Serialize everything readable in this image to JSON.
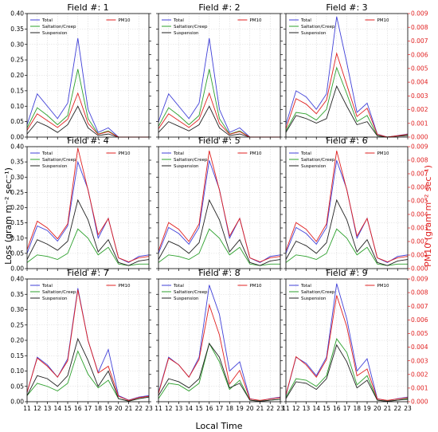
{
  "figure": {
    "ylabel_left": "Loss (gram m⁻² sec⁻¹)",
    "ylabel_right": "PM10 (gram m⁻² sec⁻¹)",
    "xlabel": "Local Time",
    "colors": {
      "Total": "#4040d8",
      "Saltation/Creep": "#2ca02c",
      "Suspension": "#222222",
      "PM10": "#e02020",
      "right_axis": "#e02020",
      "grid": "#d8d8d8"
    }
  },
  "chart_data": {
    "type": "line",
    "grid": true,
    "x": [
      11,
      12,
      13,
      14,
      15,
      16,
      17,
      18,
      19,
      20,
      21,
      22,
      23
    ],
    "xticks": [
      "11",
      "12",
      "13",
      "14",
      "15",
      "16",
      "17",
      "18",
      "19",
      "20",
      "21",
      "22",
      "23"
    ],
    "ylim_left": [
      0,
      0.4
    ],
    "yticks_left": [
      "0.00",
      "0.05",
      "0.10",
      "0.15",
      "0.20",
      "0.25",
      "0.30",
      "0.35",
      "0.40"
    ],
    "ylim_right": [
      0,
      0.009
    ],
    "yticks_right": [
      "0.000",
      "0.001",
      "0.002",
      "0.003",
      "0.004",
      "0.005",
      "0.006",
      "0.007",
      "0.008",
      "0.009"
    ],
    "legend_left": [
      "Total",
      "Saltation/Creep",
      "Suspension"
    ],
    "legend_right": [
      "PM10"
    ],
    "panels": [
      {
        "title": "Field #: 1",
        "Total": [
          0.04,
          0.14,
          0.1,
          0.06,
          0.11,
          0.32,
          0.09,
          0.015,
          0.03,
          0,
          0,
          0,
          0
        ],
        "Saltation/Creep": [
          0.03,
          0.095,
          0.07,
          0.04,
          0.07,
          0.22,
          0.06,
          0.01,
          0.02,
          0,
          0,
          0,
          0
        ],
        "Suspension": [
          0.01,
          0.05,
          0.035,
          0.015,
          0.04,
          0.1,
          0.03,
          0.005,
          0.01,
          0,
          0,
          0,
          0
        ],
        "PM10": [
          0.0005,
          0.0017,
          0.0012,
          0.0007,
          0.0013,
          0.0032,
          0.001,
          0.0002,
          0.0004,
          0,
          0,
          0,
          0
        ]
      },
      {
        "title": "Field #: 2",
        "Total": [
          0.05,
          0.14,
          0.1,
          0.06,
          0.11,
          0.32,
          0.09,
          0.015,
          0.03,
          0,
          0,
          0,
          0
        ],
        "Saltation/Creep": [
          0.035,
          0.095,
          0.07,
          0.04,
          0.07,
          0.22,
          0.06,
          0.01,
          0.02,
          0,
          0,
          0,
          0
        ],
        "Suspension": [
          0.015,
          0.05,
          0.035,
          0.02,
          0.04,
          0.1,
          0.03,
          0.005,
          0.01,
          0,
          0,
          0,
          0
        ],
        "PM10": [
          0.0006,
          0.0017,
          0.0012,
          0.0007,
          0.0013,
          0.0032,
          0.001,
          0.0002,
          0.0004,
          0,
          0,
          0,
          0
        ]
      },
      {
        "title": "Field #: 3",
        "Total": [
          0.04,
          0.15,
          0.13,
          0.09,
          0.14,
          0.39,
          0.24,
          0.08,
          0.11,
          0.01,
          0,
          0.005,
          0.01
        ],
        "Saltation/Creep": [
          0.02,
          0.08,
          0.075,
          0.055,
          0.09,
          0.225,
          0.14,
          0.05,
          0.07,
          0.005,
          0,
          0.004,
          0.008
        ],
        "Suspension": [
          0.015,
          0.07,
          0.06,
          0.045,
          0.06,
          0.165,
          0.1,
          0.04,
          0.05,
          0.004,
          0,
          0.003,
          0.005
        ],
        "PM10": [
          0.0006,
          0.0028,
          0.0024,
          0.0017,
          0.0027,
          0.0061,
          0.0038,
          0.0015,
          0.0021,
          0.0002,
          0,
          0.0001,
          0.0002
        ]
      },
      {
        "title": "Field #: 4",
        "Total": [
          0.05,
          0.14,
          0.125,
          0.09,
          0.14,
          0.35,
          0.26,
          0.1,
          0.165,
          0.035,
          0.02,
          0.04,
          0.045
        ],
        "Saltation/Creep": [
          0.02,
          0.045,
          0.04,
          0.03,
          0.05,
          0.13,
          0.1,
          0.045,
          0.07,
          0.015,
          0.01,
          0.015,
          0.015
        ],
        "Suspension": [
          0.03,
          0.095,
          0.08,
          0.06,
          0.09,
          0.225,
          0.16,
          0.055,
          0.095,
          0.02,
          0.01,
          0.025,
          0.03
        ],
        "PM10": [
          0.0014,
          0.0035,
          0.003,
          0.0022,
          0.0033,
          0.0089,
          0.0058,
          0.0025,
          0.0037,
          0.0008,
          0.0005,
          0.0008,
          0.0009
        ]
      },
      {
        "title": "Field #: 5",
        "Total": [
          0.05,
          0.135,
          0.115,
          0.08,
          0.135,
          0.355,
          0.26,
          0.1,
          0.165,
          0.035,
          0.02,
          0.04,
          0.045
        ],
        "Saltation/Creep": [
          0.02,
          0.045,
          0.04,
          0.03,
          0.05,
          0.13,
          0.1,
          0.045,
          0.07,
          0.015,
          0.01,
          0.015,
          0.015
        ],
        "Suspension": [
          0.03,
          0.09,
          0.075,
          0.05,
          0.085,
          0.225,
          0.16,
          0.055,
          0.095,
          0.02,
          0.01,
          0.025,
          0.03
        ],
        "PM10": [
          0.0013,
          0.0034,
          0.0029,
          0.002,
          0.0033,
          0.0087,
          0.0058,
          0.0024,
          0.0037,
          0.0008,
          0.0005,
          0.0008,
          0.0009
        ]
      },
      {
        "title": "Field #: 6",
        "Total": [
          0.05,
          0.135,
          0.115,
          0.08,
          0.135,
          0.355,
          0.26,
          0.1,
          0.165,
          0.035,
          0.02,
          0.04,
          0.045
        ],
        "Saltation/Creep": [
          0.02,
          0.045,
          0.04,
          0.03,
          0.05,
          0.13,
          0.1,
          0.045,
          0.07,
          0.015,
          0.01,
          0.015,
          0.015
        ],
        "Suspension": [
          0.03,
          0.09,
          0.075,
          0.05,
          0.085,
          0.225,
          0.16,
          0.055,
          0.095,
          0.02,
          0.01,
          0.025,
          0.03
        ],
        "PM10": [
          0.0013,
          0.0034,
          0.0029,
          0.002,
          0.0033,
          0.0087,
          0.0058,
          0.0024,
          0.0037,
          0.0008,
          0.0005,
          0.0008,
          0.0009
        ]
      },
      {
        "title": "Field #: 7",
        "Total": [
          0.03,
          0.145,
          0.12,
          0.08,
          0.14,
          0.37,
          0.2,
          0.095,
          0.17,
          0.02,
          0.005,
          0.015,
          0.02
        ],
        "Saltation/Creep": [
          0.02,
          0.06,
          0.05,
          0.035,
          0.06,
          0.165,
          0.09,
          0.045,
          0.07,
          0.01,
          0.002,
          0.01,
          0.015
        ],
        "Suspension": [
          0.02,
          0.085,
          0.075,
          0.05,
          0.085,
          0.205,
          0.135,
          0.05,
          0.1,
          0.01,
          0.002,
          0.01,
          0.015
        ],
        "PM10": [
          0.0007,
          0.0032,
          0.0026,
          0.0018,
          0.003,
          0.0082,
          0.0045,
          0.0021,
          0.0026,
          0.0004,
          0.0001,
          0.0003,
          0.0004
        ]
      },
      {
        "title": "Field #: 8",
        "Total": [
          0.03,
          0.145,
          0.12,
          0.08,
          0.145,
          0.38,
          0.285,
          0.1,
          0.13,
          0.01,
          0.003,
          0.01,
          0.015
        ],
        "Saltation/Creep": [
          0.01,
          0.06,
          0.055,
          0.035,
          0.06,
          0.19,
          0.13,
          0.04,
          0.07,
          0.005,
          0.002,
          0.005,
          0.008
        ],
        "Suspension": [
          0.02,
          0.075,
          0.065,
          0.045,
          0.075,
          0.19,
          0.145,
          0.045,
          0.06,
          0.005,
          0.001,
          0.005,
          0.008
        ],
        "PM10": [
          0.0006,
          0.0032,
          0.0027,
          0.0018,
          0.0031,
          0.0071,
          0.0049,
          0.0013,
          0.0023,
          0.0002,
          0.0001,
          0.0002,
          0.0003
        ]
      },
      {
        "title": "Field #: 9",
        "Total": [
          0.02,
          0.145,
          0.125,
          0.085,
          0.145,
          0.385,
          0.27,
          0.1,
          0.14,
          0.01,
          0.003,
          0.01,
          0.015
        ],
        "Saltation/Creep": [
          0.015,
          0.075,
          0.07,
          0.05,
          0.085,
          0.205,
          0.16,
          0.055,
          0.085,
          0.005,
          0.002,
          0.005,
          0.01
        ],
        "Suspension": [
          0.01,
          0.065,
          0.06,
          0.04,
          0.075,
          0.185,
          0.13,
          0.045,
          0.07,
          0.005,
          0.001,
          0.005,
          0.008
        ],
        "PM10": [
          0.0005,
          0.0033,
          0.0027,
          0.0018,
          0.0031,
          0.0078,
          0.0055,
          0.0019,
          0.0024,
          0.0002,
          0.0001,
          0.0002,
          0.0003
        ]
      }
    ]
  }
}
